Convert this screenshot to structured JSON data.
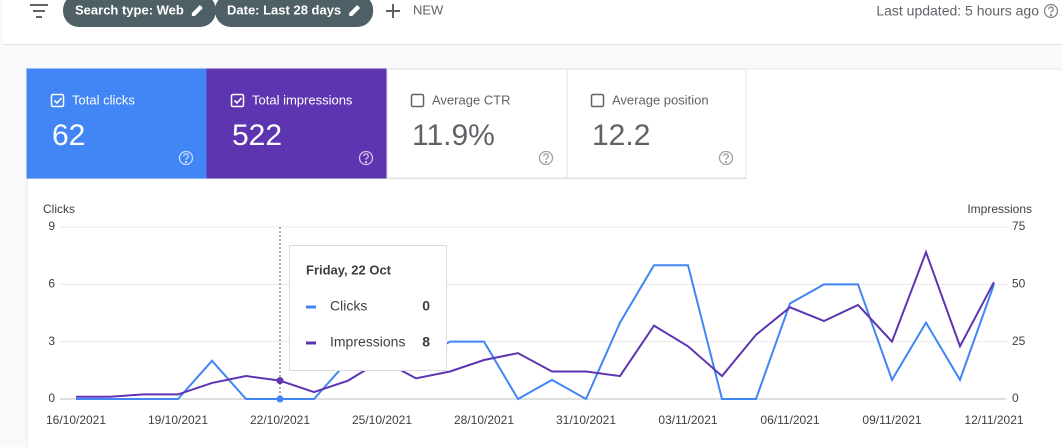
{
  "toolbar": {
    "filters": [
      "Search type: Web",
      "Date: Last 28 days"
    ],
    "new": "NEW",
    "last_updated": "Last updated: 5 hours ago"
  },
  "metrics": [
    {
      "label": "Total clicks",
      "value": 62,
      "checked": true,
      "color": "#4285f4"
    },
    {
      "label": "Total impressions",
      "value": 522,
      "checked": true,
      "color": "#5e35b1"
    },
    {
      "label": "Average CTR",
      "value": "11.9%",
      "checked": false,
      "color": "#ffffff"
    },
    {
      "label": "Average position",
      "value": 12.2,
      "checked": false,
      "color": "#ffffff"
    }
  ],
  "chart_data": {
    "type": "line",
    "ylabel": "Clicks",
    "y2label": "Impressions",
    "categories": [
      "16/10/2021",
      null,
      null,
      "19/10/2021",
      null,
      null,
      "22/10/2021",
      null,
      null,
      "25/10/2021",
      null,
      null,
      "28/10/2021",
      null,
      null,
      "31/10/2021",
      null,
      null,
      "03/11/2021",
      null,
      null,
      "06/11/2021",
      null,
      null,
      "09/11/2021",
      null,
      null,
      "12/11/2021"
    ],
    "series": [
      {
        "name": "Clicks",
        "color": "#4285f4",
        "values": [
          0,
          0,
          0,
          0,
          2,
          0,
          0,
          0,
          2,
          2,
          2,
          3,
          3,
          0,
          1,
          0,
          4,
          7,
          7,
          0,
          0,
          5,
          6,
          6,
          1,
          4,
          1,
          6
        ]
      },
      {
        "name": "Impressions",
        "color": "#5e35b1",
        "axis": "y2",
        "values": [
          1,
          1,
          2,
          2,
          7,
          10,
          8,
          3,
          8,
          17,
          9,
          12,
          17,
          20,
          12,
          12,
          10,
          32,
          23,
          10,
          28,
          40,
          34,
          41,
          25,
          64,
          23,
          51
        ]
      }
    ],
    "ylim": [
      0,
      9
    ],
    "yticks": [
      0,
      3,
      6,
      9
    ],
    "y2lim": [
      0,
      75
    ],
    "y2ticks": [
      0,
      25,
      50,
      75
    ],
    "grid": true,
    "tooltip": {
      "title": "Friday, 22 Oct"
    }
  }
}
